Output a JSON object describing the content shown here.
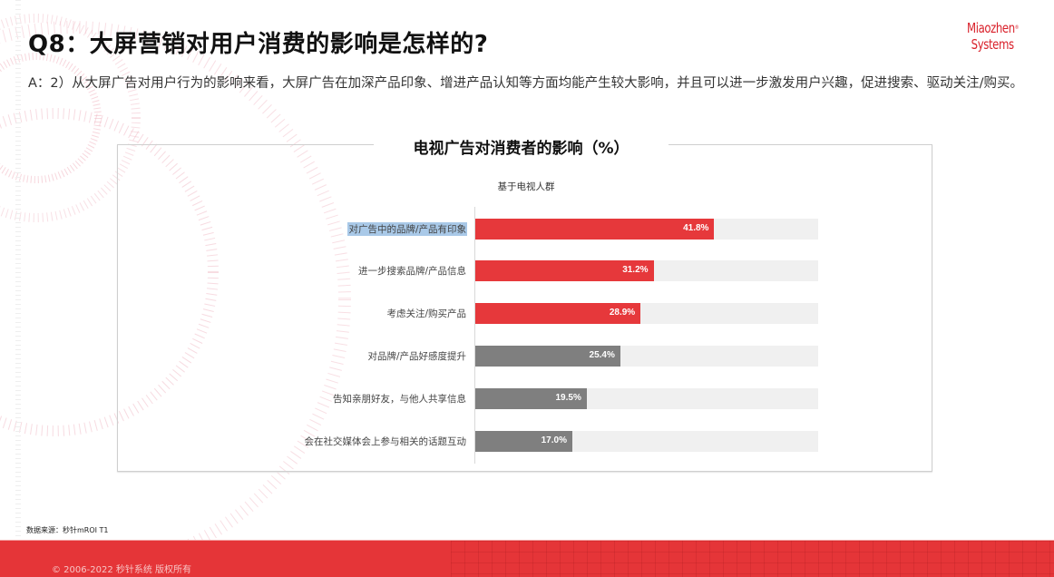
{
  "header": {
    "title": "Q8：大屏营销对用户消费的影响是怎样的?",
    "subtitle": "A：2）从大屏广告对用户行为的影响来看，大屏广告在加深产品印象、增进产品认知等方面均能产生较大影响，并且可以进一步激发用户兴趣，促进搜索、驱动关注/购买。",
    "logo": {
      "line1": "Miaozhen",
      "mark": "®",
      "line2": "Systems",
      "color": "#d9202a"
    }
  },
  "chart_data": {
    "type": "bar",
    "orientation": "horizontal",
    "title": "电视广告对消费者的影响（%）",
    "subtitle": "基于电视人群",
    "categories": [
      "对广告中的品牌/产品有印象",
      "进一步搜索品牌/产品信息",
      "考虑关注/购买产品",
      "对品牌/产品好感度提升",
      "告知亲朋好友，与他人共享信息",
      "会在社交媒体会上参与相关的话题互动"
    ],
    "values": [
      41.8,
      31.2,
      28.9,
      25.4,
      19.5,
      17.0
    ],
    "value_labels": [
      "41.8%",
      "31.2%",
      "28.9%",
      "25.4%",
      "19.5%",
      "17.0%"
    ],
    "bar_colors": [
      "#e6383b",
      "#e6383b",
      "#e6383b",
      "#7f7f7f",
      "#7f7f7f",
      "#7f7f7f"
    ],
    "track_color": "#f0f0f0",
    "xlim": [
      0,
      60
    ],
    "grid": false,
    "legend": null,
    "xlabel": "",
    "ylabel": ""
  },
  "chart_rows": [
    {
      "label": "对广告中的品牌/产品有印象",
      "value_label": "41.8%",
      "width": "69.7%",
      "color": "#e6383b",
      "selected": true
    },
    {
      "label": "进一步搜索品牌/产品信息",
      "value_label": "31.2%",
      "width": "52%",
      "color": "#e6383b"
    },
    {
      "label": "考虑关注/购买产品",
      "value_label": "28.9%",
      "width": "48.2%",
      "color": "#e6383b"
    },
    {
      "label": "对品牌/产品好感度提升",
      "value_label": "25.4%",
      "width": "42.3%",
      "color": "#7f7f7f"
    },
    {
      "label": "告知亲朋好友，与他人共享信息",
      "value_label": "19.5%",
      "width": "32.5%",
      "color": "#7f7f7f"
    },
    {
      "label": "会在社交媒体会上参与相关的话题互动",
      "value_label": "17.0%",
      "width": "28.3%",
      "color": "#7f7f7f"
    }
  ],
  "source_note": "数据来源：秒针mROI T1",
  "footer": {
    "copyright": "© 2006-2022 秒针系统 版权所有",
    "color": "#e53538"
  }
}
